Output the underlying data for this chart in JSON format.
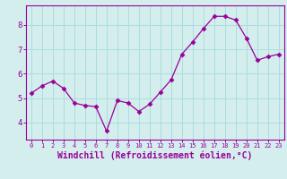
{
  "x": [
    0,
    1,
    2,
    3,
    4,
    5,
    6,
    7,
    8,
    9,
    10,
    11,
    12,
    13,
    14,
    15,
    16,
    17,
    18,
    19,
    20,
    21,
    22,
    23
  ],
  "y": [
    5.2,
    5.5,
    5.7,
    5.4,
    4.8,
    4.7,
    4.65,
    3.65,
    4.9,
    4.8,
    4.45,
    4.75,
    5.25,
    5.75,
    6.8,
    7.3,
    7.85,
    8.35,
    8.35,
    8.2,
    7.45,
    6.55,
    6.7,
    6.8
  ],
  "line_color": "#990099",
  "marker": "D",
  "marker_size": 2.5,
  "bg_color": "#d4eeee",
  "grid_color": "#aadddd",
  "axis_color": "#990099",
  "tick_color": "#990099",
  "xlabel": "Windchill (Refroidissement éolien,°C)",
  "xlabel_fontsize": 7,
  "xtick_fontsize": 5,
  "ytick_fontsize": 6.5,
  "ylabel_ticks": [
    4,
    5,
    6,
    7,
    8
  ],
  "xlim": [
    -0.5,
    23.5
  ],
  "ylim": [
    3.3,
    8.8
  ]
}
